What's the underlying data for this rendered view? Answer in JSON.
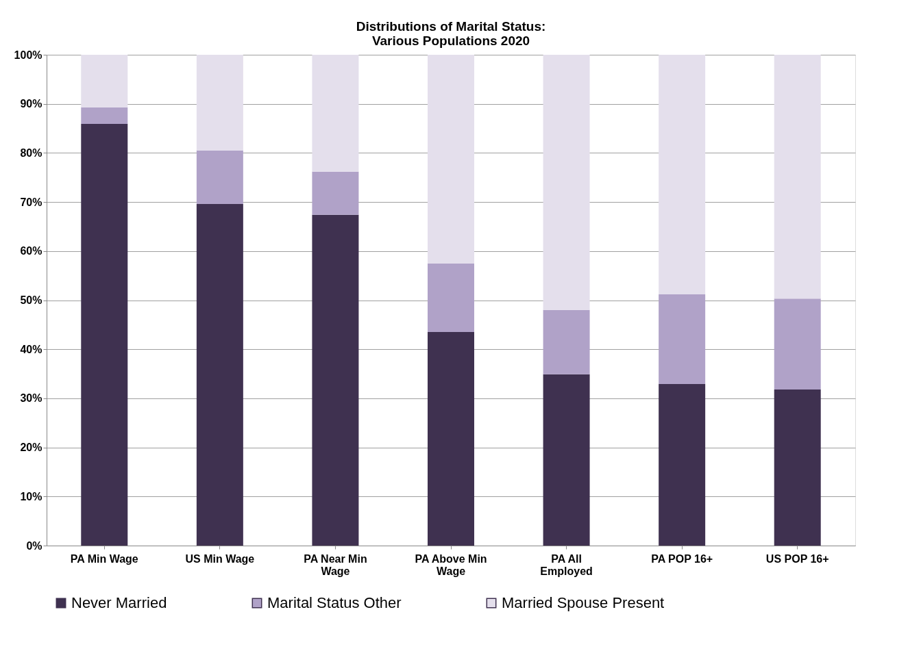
{
  "chart_data": {
    "type": "bar",
    "title": "Distributions of Marital Status:\nVarious Populations 2020",
    "categories": [
      "PA Min Wage",
      "US Min Wage",
      "PA Near Min Wage",
      "PA Above Min Wage",
      "PA All Employed",
      "PA POP 16+",
      "US POP 16+"
    ],
    "stacked": true,
    "series": [
      {
        "name": "Never Married",
        "color": "#3f3150",
        "values": [
          85.9,
          69.6,
          67.4,
          43.5,
          34.9,
          32.9,
          31.8
        ]
      },
      {
        "name": "Marital Status Other",
        "color": "#b0a2c8",
        "values": [
          3.4,
          10.9,
          8.8,
          14.0,
          13.1,
          18.3,
          18.5
        ]
      },
      {
        "name": "Married Spouse Present",
        "color": "#e4dfec",
        "values": [
          10.7,
          19.5,
          23.8,
          42.5,
          52.0,
          48.8,
          49.7
        ]
      }
    ],
    "ylim": [
      0,
      100
    ],
    "yticks": [
      {
        "value": 0,
        "label": "0%"
      },
      {
        "value": 10,
        "label": "10%"
      },
      {
        "value": 20,
        "label": "20%"
      },
      {
        "value": 30,
        "label": "30%"
      },
      {
        "value": 40,
        "label": "40%"
      },
      {
        "value": 50,
        "label": "50%"
      },
      {
        "value": 60,
        "label": "60%"
      },
      {
        "value": 70,
        "label": "70%"
      },
      {
        "value": 80,
        "label": "80%"
      },
      {
        "value": 90,
        "label": "90%"
      },
      {
        "value": 100,
        "label": "100%"
      }
    ],
    "grid": "y",
    "legend": "bottom"
  }
}
